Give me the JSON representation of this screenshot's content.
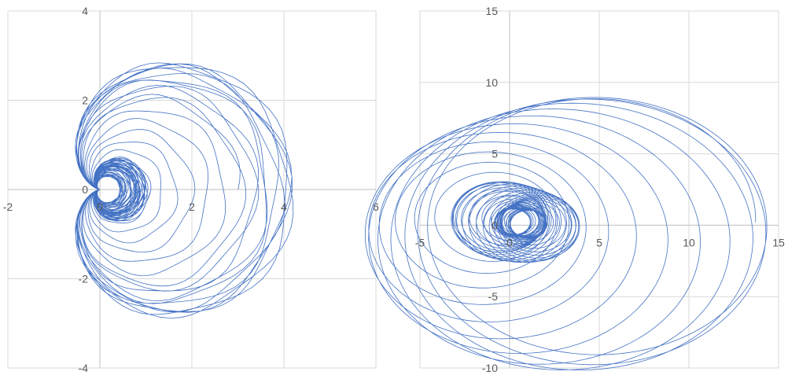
{
  "chart_data": [
    {
      "type": "scatter",
      "title": "",
      "xlabel": "",
      "ylabel": "",
      "xlim": [
        -2,
        6
      ],
      "ylim": [
        -4,
        4
      ],
      "x_ticks": [
        "-2",
        "0",
        "2",
        "4",
        "6"
      ],
      "y_ticks": [
        "-4",
        "-2",
        "0",
        "2",
        "4"
      ],
      "grid": true,
      "legend": "none",
      "series": [
        {
          "style": "smooth-line-no-markers",
          "curve": "nested cardioid-like loops through origin",
          "x_range": [
            -0.6,
            5.0
          ],
          "y_range": [
            -3.4,
            3.1
          ],
          "turns": 60
        }
      ]
    },
    {
      "type": "scatter",
      "title": "",
      "xlabel": "",
      "ylabel": "",
      "xlim": [
        -5,
        15
      ],
      "ylim": [
        -10,
        15
      ],
      "x_ticks": [
        "-5",
        "0",
        "5",
        "10",
        "15"
      ],
      "y_ticks": [
        "-10",
        "-5",
        "0",
        "5",
        "10",
        "15"
      ],
      "grid": true,
      "legend": "none",
      "series": [
        {
          "style": "smooth-line-no-markers",
          "curve": "looping orbits around a center near (0.5, 0.2)",
          "x_range": [
            -5.0,
            14.7
          ],
          "y_range": [
            -8.0,
            11.5
          ],
          "turns": 60
        }
      ]
    }
  ],
  "colors": {
    "line": "#4472c4",
    "grid": "#d9d9d9",
    "tick_text": "#595959"
  }
}
